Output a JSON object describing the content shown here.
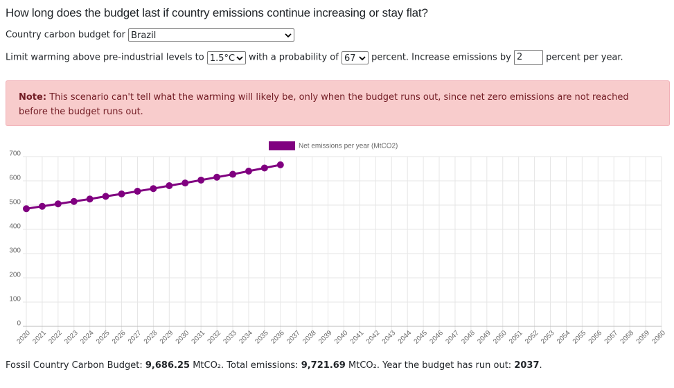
{
  "header": {
    "title": "How long does the budget last if country emissions continue increasing or stay flat?"
  },
  "form": {
    "country_label": "Country carbon budget for",
    "country": "Brazil",
    "warming_label": "Limit warming above pre-industrial levels to",
    "warming": "1.5°C",
    "probability_label": "with a probability of",
    "probability": "67",
    "increase_label": "percent. Increase emissions by",
    "increase": "2",
    "increase_unit": "percent per year."
  },
  "note": {
    "label": "Note:",
    "text": "This scenario can't tell what the warming will likely be, only when the budget runs out, since net zero emissions are not reached before the budget runs out."
  },
  "chart_data": {
    "type": "line",
    "grid": true,
    "categories": [
      "2020",
      "2021",
      "2022",
      "2023",
      "2024",
      "2025",
      "2026",
      "2027",
      "2028",
      "2029",
      "2030",
      "2031",
      "2032",
      "2033",
      "2034",
      "2035",
      "2036",
      "2037",
      "2038",
      "2039",
      "2040",
      "2041",
      "2042",
      "2043",
      "2044",
      "2045",
      "2046",
      "2047",
      "2048",
      "2049",
      "2050",
      "2051",
      "2052",
      "2053",
      "2054",
      "2055",
      "2056",
      "2057",
      "2058",
      "2059",
      "2060"
    ],
    "series": [
      {
        "name": "Net emissions per year (MtCO2)",
        "color": "#800080",
        "values": [
          485,
          495,
          505,
          515,
          525,
          536,
          546,
          557,
          568,
          580,
          591,
          603,
          615,
          627,
          640,
          653,
          666,
          null,
          null,
          null,
          null,
          null,
          null,
          null,
          null,
          null,
          null,
          null,
          null,
          null,
          null,
          null,
          null,
          null,
          null,
          null,
          null,
          null,
          null,
          null,
          null
        ]
      }
    ],
    "ylim": [
      0,
      700
    ],
    "yticks": [
      0,
      100,
      200,
      300,
      400,
      500,
      600,
      700
    ]
  },
  "summary": {
    "budget_label": "Fossil Country Carbon Budget:",
    "budget": "9,686.25",
    "budget_unit": "MtCO₂. Total emissions:",
    "total": "9,721.69",
    "total_unit": "MtCO₂. Year the budget has run out:",
    "year": "2037",
    "end": "."
  }
}
